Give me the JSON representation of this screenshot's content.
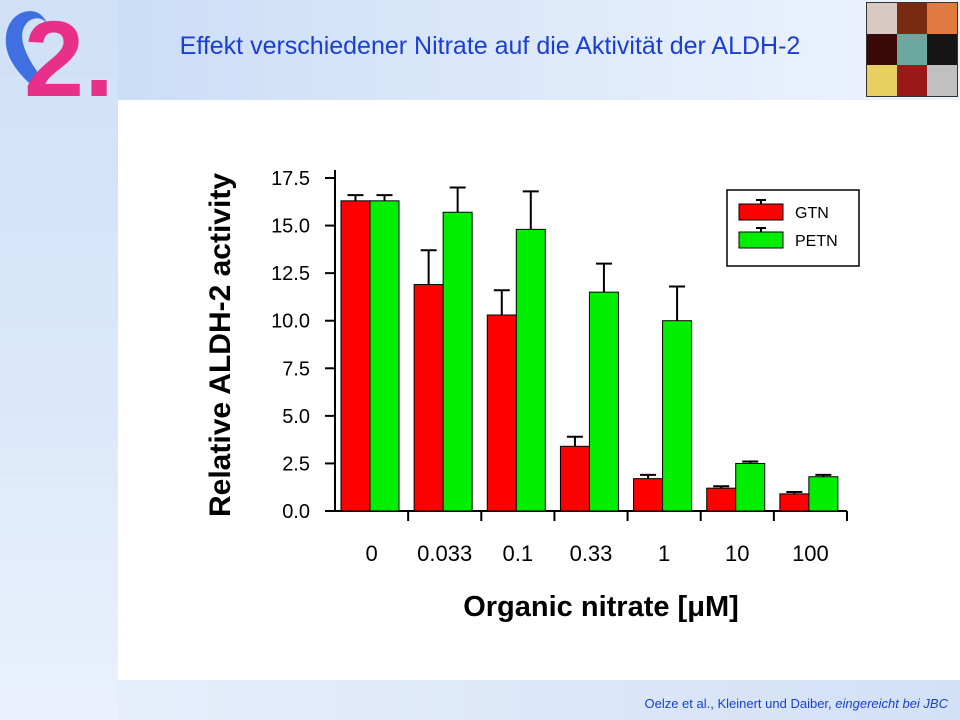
{
  "header": {
    "title": "Effekt verschiedener Nitrate auf die Aktivität der ALDH-2",
    "logo_text": "2.",
    "logo_icon": "heart-shape-icon",
    "photo_cells": [
      "#d9c9c4",
      "#7a2a10",
      "#e07a40",
      "#3a0a08",
      "#6aa8a0",
      "#151515",
      "#e8d060",
      "#9a1a1a",
      "#c0c0c0"
    ]
  },
  "footer": {
    "citation": "Oelze et al., Kleinert und Daiber, ",
    "citation_italic": "eingereicht bei JBC"
  },
  "chart_data": {
    "type": "bar",
    "xlabel": "Organic nitrate [μM]",
    "ylabel": "Relative ALDH-2 activity",
    "categories": [
      "0",
      "0.033",
      "0.1",
      "0.33",
      "1",
      "10",
      "100"
    ],
    "ylim": [
      0,
      17.5
    ],
    "yticks": [
      "0.0",
      "2.5",
      "5.0",
      "7.5",
      "10.0",
      "12.5",
      "15.0",
      "17.5"
    ],
    "grid": false,
    "legend_position": "top-right",
    "series": [
      {
        "name": "GTN",
        "color": "#ff0000",
        "values": [
          16.3,
          11.9,
          10.3,
          3.4,
          1.7,
          1.2,
          0.9
        ],
        "errors": [
          0.3,
          1.8,
          1.3,
          0.5,
          0.2,
          0.1,
          0.1
        ]
      },
      {
        "name": "PETN",
        "color": "#00ee00",
        "values": [
          16.3,
          15.7,
          14.8,
          11.5,
          10.0,
          2.5,
          1.8
        ],
        "errors": [
          0.3,
          1.3,
          2.0,
          1.5,
          1.8,
          0.1,
          0.1
        ]
      }
    ]
  }
}
